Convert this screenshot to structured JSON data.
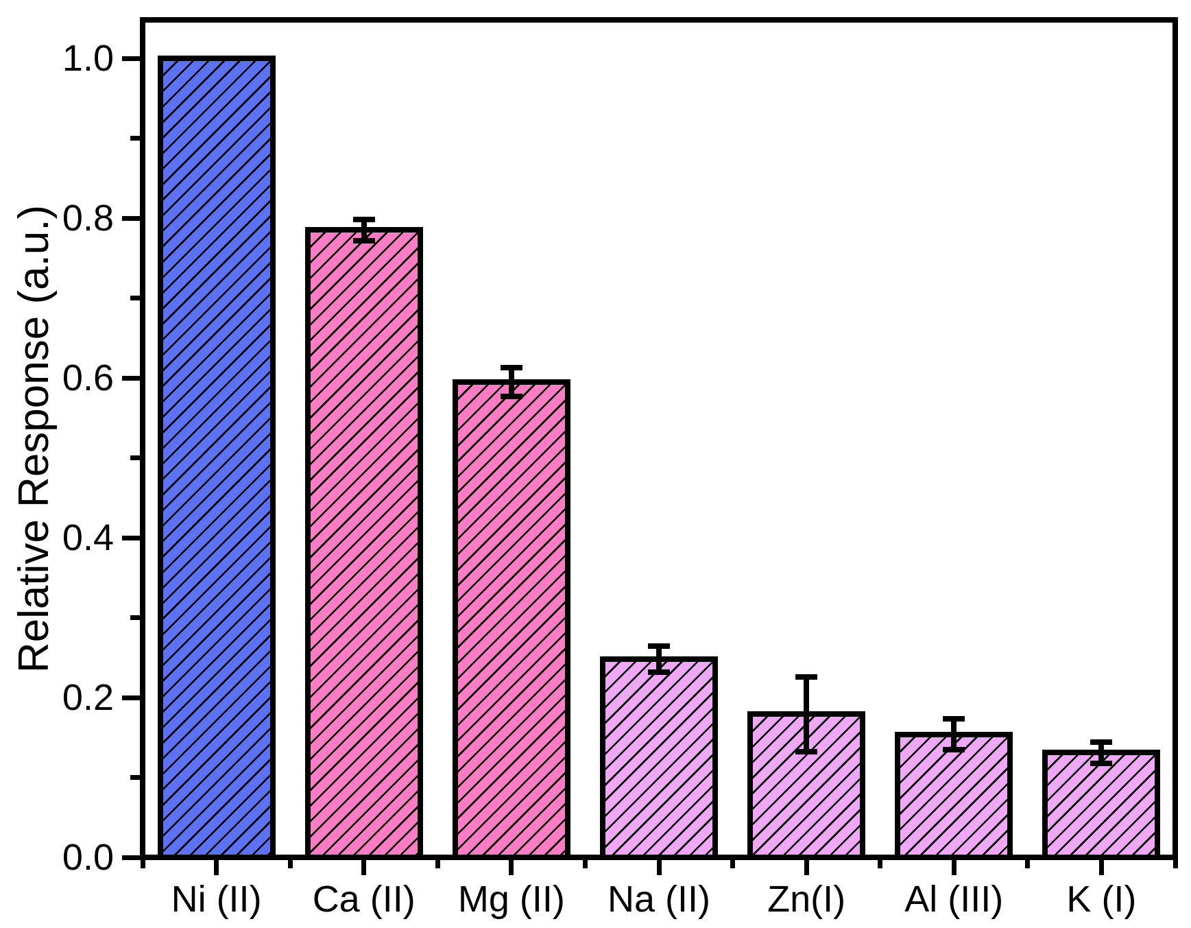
{
  "chart_data": {
    "type": "bar",
    "title": "",
    "xlabel": "",
    "ylabel": "Relative Response (a.u.)",
    "categories": [
      "Ni (II)",
      "Ca (II)",
      "Mg (II)",
      "Na (II)",
      "Zn(I)",
      "Al (III)",
      "K (I)"
    ],
    "values": [
      1.0,
      0.785,
      0.595,
      0.248,
      0.179,
      0.154,
      0.131
    ],
    "errors": [
      0,
      0.013,
      0.018,
      0.016,
      0.047,
      0.019,
      0.013
    ],
    "series": [
      {
        "name": "Relative Response",
        "values": [
          1.0,
          0.785,
          0.595,
          0.248,
          0.179,
          0.154,
          0.131
        ]
      }
    ],
    "bar_colors": [
      "#5C72F2",
      "#FD7CC4",
      "#FD7CC4",
      "#EFA8F6",
      "#EFA8F6",
      "#EFA8F6",
      "#EFA8F6"
    ],
    "edge_color": "#000000",
    "hatch": "forward-diagonal",
    "ylim": [
      0,
      1.05
    ],
    "y_major_ticks": [
      0.0,
      0.2,
      0.4,
      0.6,
      0.8,
      1.0
    ],
    "y_tick_labels": [
      "0.0",
      "0.2",
      "0.4",
      "0.6",
      "0.8",
      "1.0"
    ],
    "y_minor_ticks": [
      0.1,
      0.3,
      0.5,
      0.7,
      0.9
    ],
    "grid": false,
    "legend": null,
    "background": "#FFFFFF"
  }
}
